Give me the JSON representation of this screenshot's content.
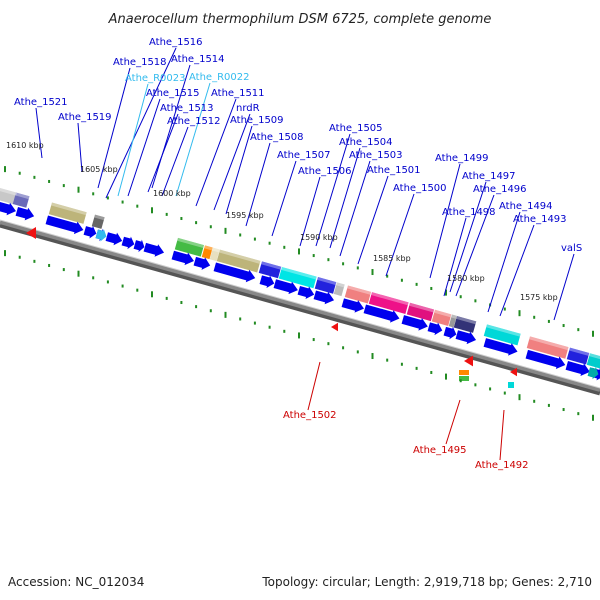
{
  "title": "Anaerocellum thermophilum DSM 6725, complete genome",
  "footer": {
    "accession": "Accession: NC_012034",
    "topology": "Topology: circular; Length: 2,919,718 bp; Genes: 2,710"
  },
  "ticks": [
    "1610 kbp",
    "1605 kbp",
    "1600 kbp",
    "1595 kbp",
    "1590 kbp",
    "1585 kbp",
    "1580 kbp",
    "1575 kbp"
  ],
  "genes_top": [
    "Athe_1521",
    "Athe_1519",
    "Athe_1518",
    "Athe_1516",
    "Athe_1514",
    "Athe_1515",
    "Athe_1513",
    "Athe_1512",
    "Athe_1511",
    "nrdR",
    "Athe_1509",
    "Athe_1508",
    "Athe_1507",
    "Athe_1506",
    "Athe_1505",
    "Athe_1504",
    "Athe_1503",
    "Athe_1501",
    "Athe_1500",
    "Athe_1499",
    "Athe_1497",
    "Athe_1496",
    "Athe_1498",
    "Athe_1494",
    "Athe_1493",
    "valS"
  ],
  "rnas": [
    "Athe_R0023",
    "Athe_R0022"
  ],
  "genes_bottom": [
    "Athe_1502",
    "Athe_1495",
    "Athe_1492"
  ],
  "colors": {
    "gene_label": "#0000cc",
    "rna_label": "#33bbee",
    "reverse_label": "#cc0000",
    "cds": "#0000ee",
    "backbone": "#888888",
    "tick": "#228b22"
  }
}
